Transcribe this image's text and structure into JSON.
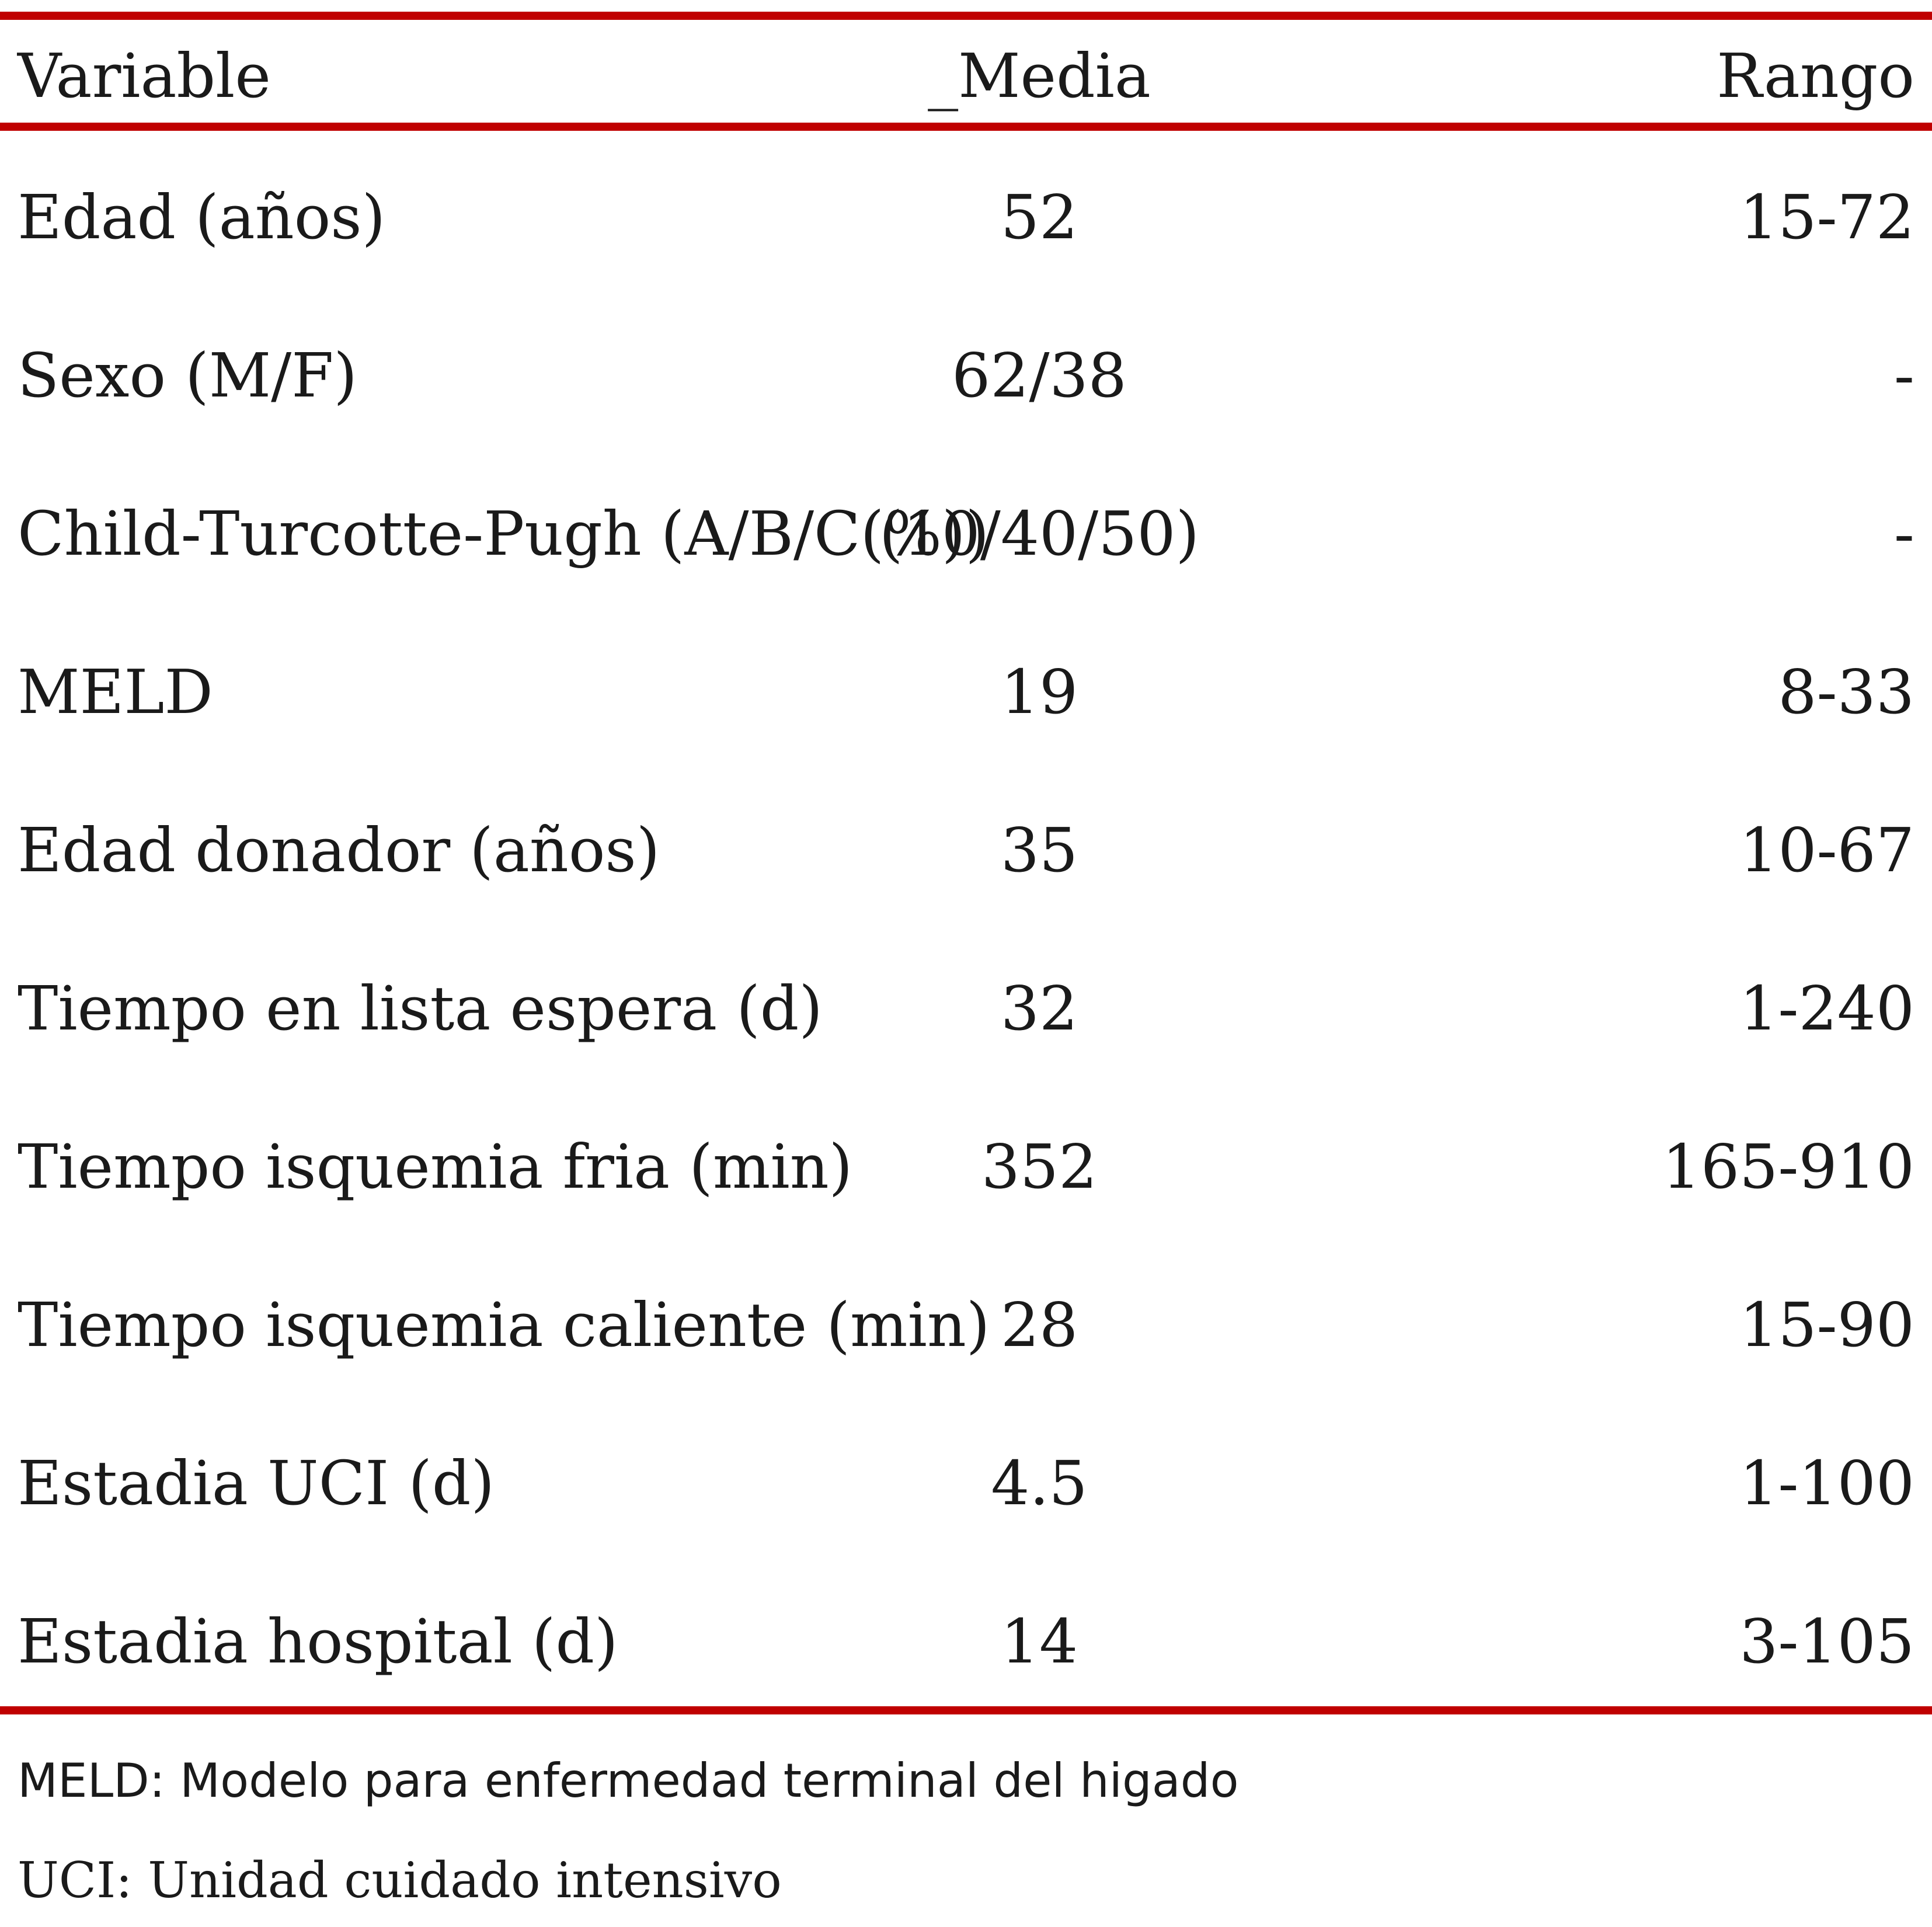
{
  "table": {
    "header": {
      "variable": "Variable",
      "media": "_Media",
      "rango": "Rango"
    },
    "rows": [
      {
        "variable": "Edad (años)",
        "media": "52",
        "rango": "15-72"
      },
      {
        "variable": "Sexo (M/F)",
        "media": "62/38",
        "rango": "-"
      },
      {
        "variable": "Child-Turcotte-Pugh (A/B/C(%))",
        "media": "(10/40/50)",
        "rango": "-"
      },
      {
        "variable": "MELD",
        "media": "19",
        "rango": "8-33"
      },
      {
        "variable": "Edad donador (años)",
        "media": "35",
        "rango": "10-67"
      },
      {
        "variable": "Tiempo en lista espera (d)",
        "media": "32",
        "rango": "1-240"
      },
      {
        "variable": "Tiempo isquemia fria (min)",
        "media": "352",
        "rango": "165-910"
      },
      {
        "variable": "Tiempo isquemia caliente (min)",
        "media": "28",
        "rango": "15-90"
      },
      {
        "variable": "Estadia UCI (d)",
        "media": "4.5",
        "rango": "1-100"
      },
      {
        "variable": "Estadia hospital (d)",
        "media": "14",
        "rango": "3-105"
      }
    ]
  },
  "notes": {
    "meld": "MELD: Modelo para enfermedad terminal del higado",
    "uci": "UCI: Unidad cuidado intensivo"
  },
  "colors": {
    "rule": "#c00000",
    "text": "#1a1a1a"
  }
}
